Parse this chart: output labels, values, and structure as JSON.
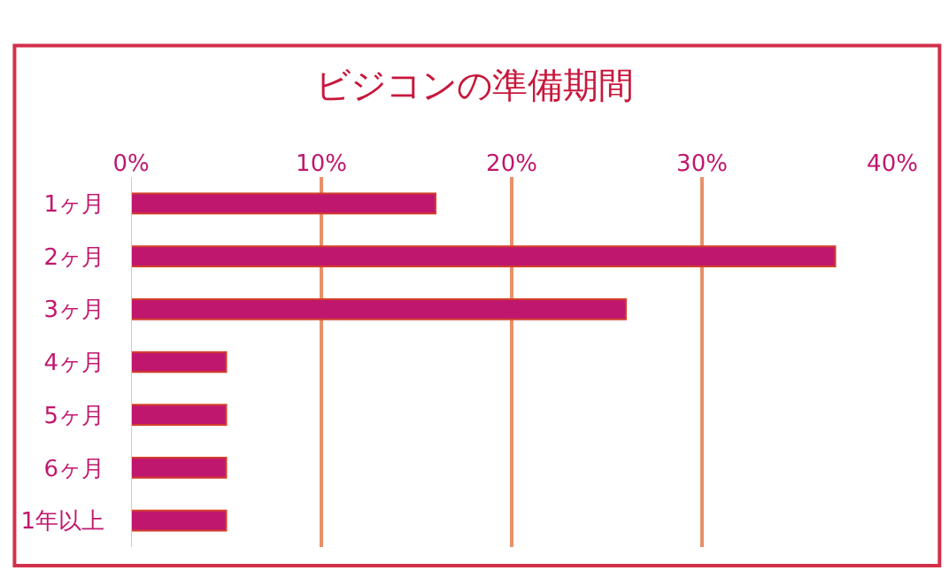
{
  "chart_data": {
    "type": "bar",
    "title": "ビジコンの準備期間",
    "orientation": "horizontal",
    "categories": [
      "1ヶ月",
      "2ヶ月",
      "3ヶ月",
      "4ヶ月",
      "5ヶ月",
      "6ヶ月",
      "1年以上"
    ],
    "values": [
      16,
      37,
      26,
      5,
      5,
      5,
      5
    ],
    "color": "#c0176e",
    "xlim": [
      0,
      40
    ],
    "xticks": [
      {
        "value": 0,
        "label": "0%"
      },
      {
        "value": 10,
        "label": "10%"
      },
      {
        "value": 20,
        "label": "20%"
      },
      {
        "value": 30,
        "label": "30%"
      },
      {
        "value": 40,
        "label": "40%"
      }
    ],
    "grid": "x"
  }
}
